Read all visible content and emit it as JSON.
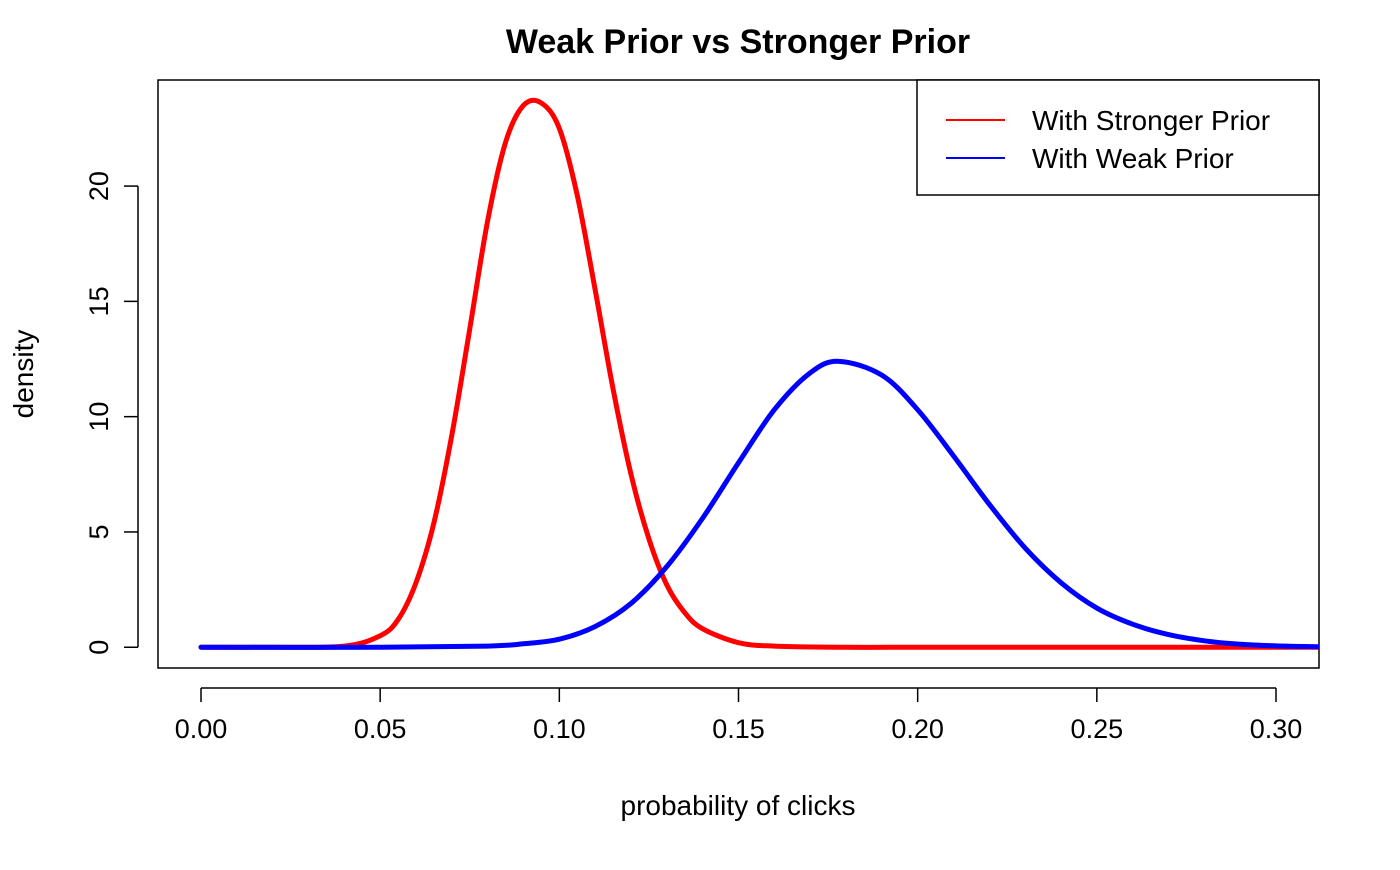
{
  "chart_data": {
    "type": "line",
    "title": "Weak Prior vs Stronger Prior",
    "xlabel": "probability of clicks",
    "ylabel": "density",
    "xlim": [
      -0.012,
      0.312
    ],
    "ylim": [
      -0.9,
      24.6
    ],
    "x_ticks": [
      0.0,
      0.05,
      0.1,
      0.15,
      0.2,
      0.25,
      0.3
    ],
    "x_tick_labels": [
      "0.00",
      "0.05",
      "0.10",
      "0.15",
      "0.20",
      "0.25",
      "0.30"
    ],
    "y_ticks": [
      0,
      5,
      10,
      15,
      20
    ],
    "y_tick_labels": [
      "0",
      "5",
      "10",
      "15",
      "20"
    ],
    "grid": false,
    "legend_position": "top-right",
    "series": [
      {
        "name": "With Stronger Prior",
        "color": "#ff0000",
        "x": [
          0.0,
          0.02,
          0.04,
          0.05,
          0.055,
          0.06,
          0.065,
          0.07,
          0.075,
          0.08,
          0.085,
          0.09,
          0.095,
          0.1,
          0.105,
          0.11,
          0.115,
          0.12,
          0.125,
          0.13,
          0.135,
          0.14,
          0.15,
          0.16,
          0.18,
          0.2,
          0.25,
          0.312
        ],
        "y": [
          0.0,
          0.0,
          0.05,
          0.5,
          1.2,
          2.8,
          5.4,
          9.2,
          13.8,
          18.5,
          21.9,
          23.5,
          23.6,
          22.5,
          19.6,
          15.5,
          11.2,
          7.5,
          4.7,
          2.7,
          1.5,
          0.8,
          0.2,
          0.05,
          0.0,
          0.0,
          0.0,
          0.0
        ]
      },
      {
        "name": "With Weak Prior",
        "color": "#0000ff",
        "x": [
          0.0,
          0.05,
          0.08,
          0.09,
          0.1,
          0.11,
          0.12,
          0.13,
          0.14,
          0.15,
          0.16,
          0.17,
          0.178,
          0.19,
          0.2,
          0.21,
          0.22,
          0.23,
          0.24,
          0.25,
          0.26,
          0.27,
          0.28,
          0.29,
          0.3,
          0.312
        ],
        "y": [
          0.0,
          0.0,
          0.05,
          0.15,
          0.35,
          0.9,
          1.9,
          3.5,
          5.6,
          8.0,
          10.3,
          11.9,
          12.4,
          11.8,
          10.3,
          8.3,
          6.2,
          4.3,
          2.8,
          1.7,
          1.0,
          0.55,
          0.28,
          0.13,
          0.06,
          0.02
        ]
      }
    ]
  }
}
